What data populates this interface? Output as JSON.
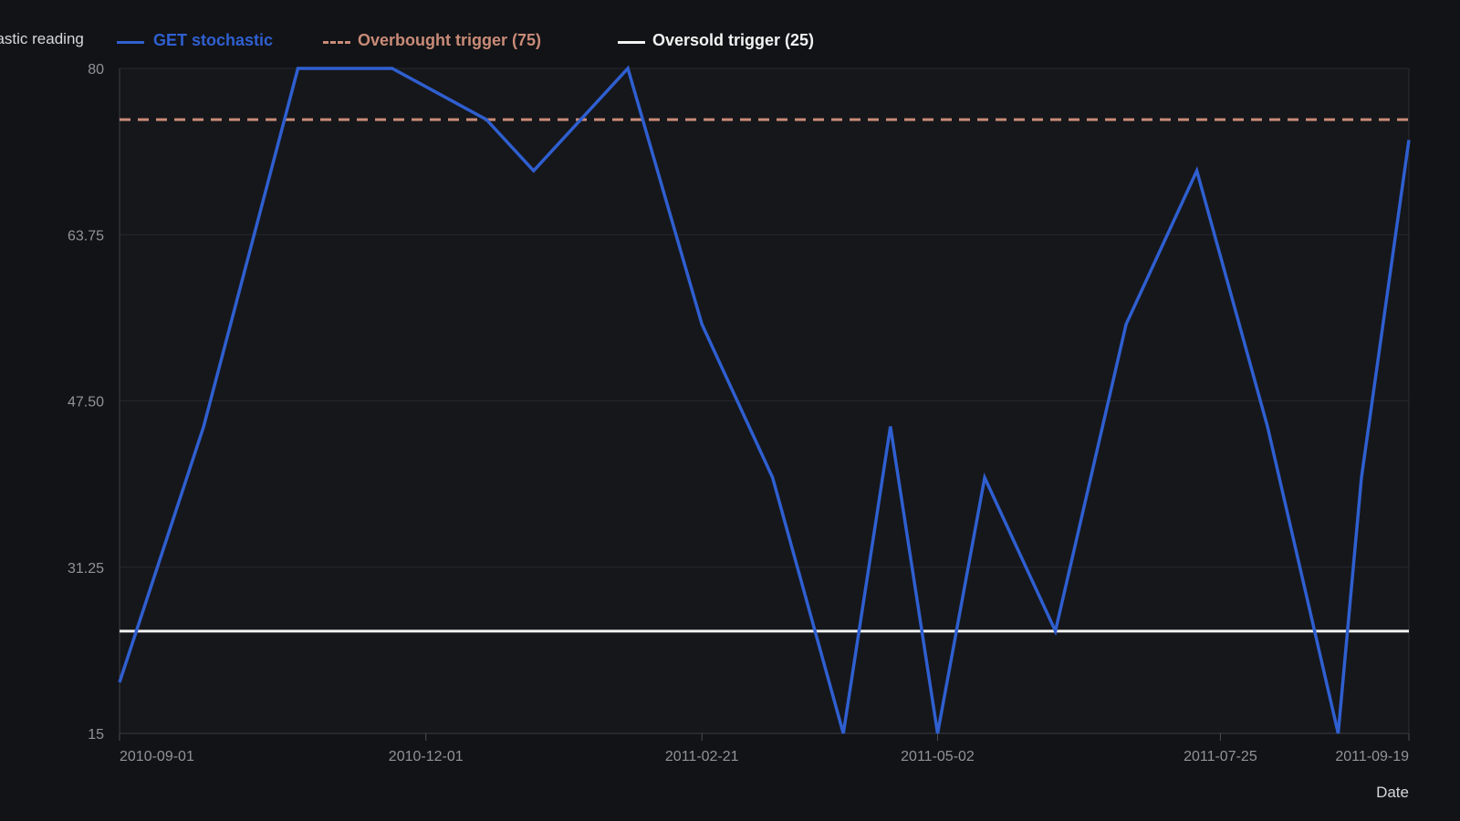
{
  "chart_data": {
    "type": "line",
    "ylabel": "Stochastic reading",
    "xlabel": "Date",
    "ylim": [
      15,
      80
    ],
    "yticks": [
      "15",
      "31.25",
      "47.50",
      "63.75",
      "80"
    ],
    "xticks": [
      "2010-09-01",
      "2010-12-01",
      "2011-02-21",
      "2011-05-02",
      "2011-07-25",
      "2011-09-19"
    ],
    "legend_position": "top",
    "grid": true,
    "series": [
      {
        "name": "GET stochastic",
        "color": "#2f5fd0",
        "style": "solid",
        "points": [
          {
            "x": "2010-09-01",
            "y": 20
          },
          {
            "x": "2010-09-26",
            "y": 45
          },
          {
            "x": "2010-10-24",
            "y": 80
          },
          {
            "x": "2010-11-21",
            "y": 80
          },
          {
            "x": "2010-12-19",
            "y": 75
          },
          {
            "x": "2011-01-02",
            "y": 70
          },
          {
            "x": "2011-01-30",
            "y": 80
          },
          {
            "x": "2011-02-21",
            "y": 55
          },
          {
            "x": "2011-03-14",
            "y": 40
          },
          {
            "x": "2011-04-04",
            "y": 15
          },
          {
            "x": "2011-04-18",
            "y": 45
          },
          {
            "x": "2011-05-02",
            "y": 15
          },
          {
            "x": "2011-05-16",
            "y": 40
          },
          {
            "x": "2011-06-06",
            "y": 25
          },
          {
            "x": "2011-06-27",
            "y": 55
          },
          {
            "x": "2011-07-18",
            "y": 70
          },
          {
            "x": "2011-08-08",
            "y": 45
          },
          {
            "x": "2011-08-29",
            "y": 15
          },
          {
            "x": "2011-09-19",
            "y": 40
          },
          {
            "x": "2011-09-19",
            "y": 73
          }
        ]
      },
      {
        "name": "Overbought trigger (75)",
        "color": "#c98b78",
        "style": "dashed",
        "value": 75
      },
      {
        "name": "Oversold trigger (25)",
        "color": "#f2f2f2",
        "style": "solid",
        "value": 25
      }
    ]
  }
}
